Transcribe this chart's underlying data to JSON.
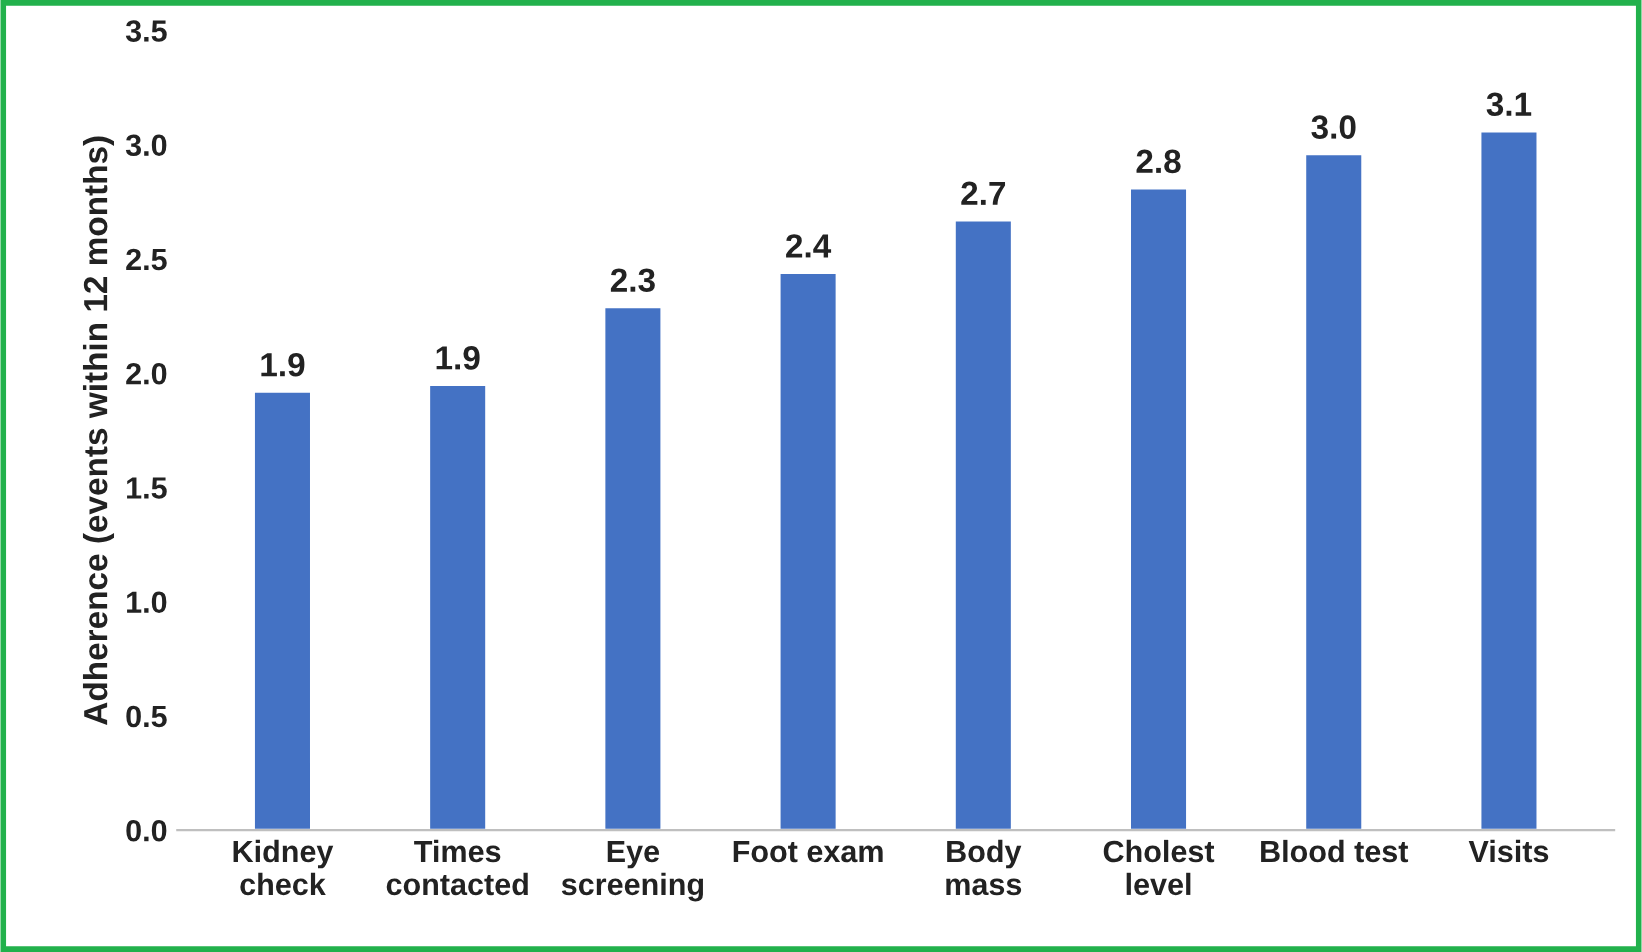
{
  "chart_data": {
    "type": "bar",
    "ylabel": "Adherence (events within 12 months)",
    "categories": [
      "Kidney\ncheck",
      "Times\ncontacted",
      "Eye\nscreening",
      "Foot exam",
      "Body\nmass",
      "Cholest\nlevel",
      "Blood test",
      "Visits"
    ],
    "values": [
      1.92,
      1.95,
      2.29,
      2.44,
      2.67,
      2.81,
      2.96,
      3.06
    ],
    "value_labels": [
      "1.9",
      "1.9",
      "2.3",
      "2.4",
      "2.7",
      "2.8",
      "3.0",
      "3.1"
    ],
    "color": "#4472c4",
    "ylim": [
      0,
      3.5
    ],
    "yticks": [
      {
        "value": 0,
        "label": "0.0"
      },
      {
        "value": 0.5,
        "label": "0.5"
      },
      {
        "value": 1,
        "label": "1.0"
      },
      {
        "value": 1.5,
        "label": "1.5"
      },
      {
        "value": 2,
        "label": "2.0"
      },
      {
        "value": 2.5,
        "label": "2.5"
      },
      {
        "value": 3,
        "label": "3.0"
      },
      {
        "value": 3.5,
        "label": "3.5"
      }
    ],
    "grid": false
  }
}
